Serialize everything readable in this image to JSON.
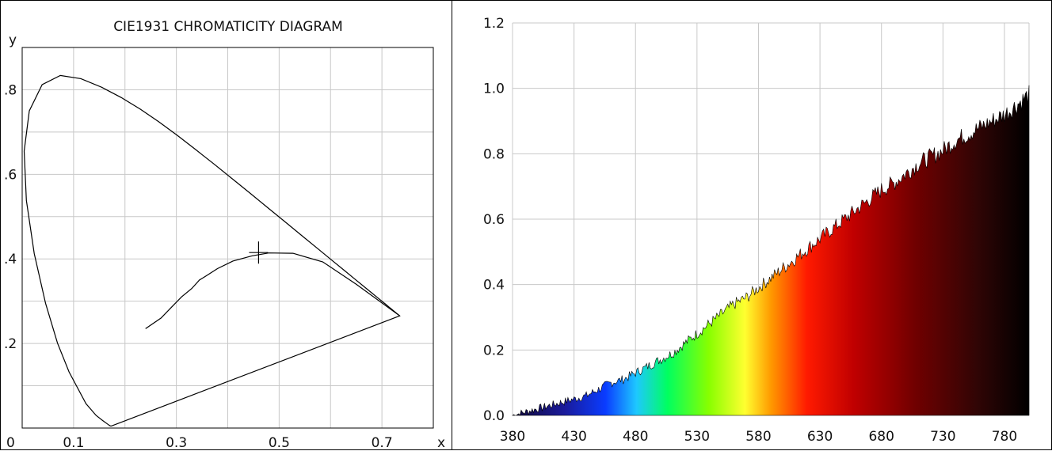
{
  "chart_data": [
    {
      "type": "scatter",
      "title": "CIE1931 CHROMATICITY DIAGRAM",
      "xlabel": "x",
      "ylabel": "y",
      "xlim": [
        0,
        0.8
      ],
      "ylim": [
        0,
        0.9
      ],
      "grid": true,
      "x_tick_labels": [
        "0",
        "0.1",
        "0.3",
        "0.5",
        "0.7"
      ],
      "y_tick_labels": [
        ".2",
        ".4",
        ".6",
        ".8"
      ],
      "spectral_locus": [
        [
          0.1741,
          0.005
        ],
        [
          0.173,
          0.0048
        ],
        [
          0.1714,
          0.0051
        ],
        [
          0.1689,
          0.0069
        ],
        [
          0.1644,
          0.0109
        ],
        [
          0.1566,
          0.0177
        ],
        [
          0.144,
          0.0297
        ],
        [
          0.1241,
          0.0578
        ],
        [
          0.0913,
          0.1327
        ],
        [
          0.0687,
          0.2007
        ],
        [
          0.0454,
          0.295
        ],
        [
          0.0235,
          0.4127
        ],
        [
          0.0082,
          0.5384
        ],
        [
          0.0039,
          0.6548
        ],
        [
          0.0139,
          0.7502
        ],
        [
          0.0389,
          0.812
        ],
        [
          0.0743,
          0.8338
        ],
        [
          0.1142,
          0.8262
        ],
        [
          0.1547,
          0.8059
        ],
        [
          0.1929,
          0.7816
        ],
        [
          0.2296,
          0.7543
        ],
        [
          0.2658,
          0.7243
        ],
        [
          0.3016,
          0.6923
        ],
        [
          0.3373,
          0.6589
        ],
        [
          0.3731,
          0.6245
        ],
        [
          0.4087,
          0.5896
        ],
        [
          0.4441,
          0.5547
        ],
        [
          0.4788,
          0.5202
        ],
        [
          0.5125,
          0.4866
        ],
        [
          0.5448,
          0.4544
        ],
        [
          0.5752,
          0.4242
        ],
        [
          0.6029,
          0.3965
        ],
        [
          0.627,
          0.3725
        ],
        [
          0.6482,
          0.3514
        ],
        [
          0.6658,
          0.334
        ],
        [
          0.6801,
          0.3197
        ],
        [
          0.6915,
          0.3083
        ],
        [
          0.7006,
          0.2993
        ],
        [
          0.7079,
          0.292
        ],
        [
          0.714,
          0.2859
        ],
        [
          0.719,
          0.2809
        ],
        [
          0.723,
          0.277
        ],
        [
          0.726,
          0.274
        ],
        [
          0.7283,
          0.2717
        ],
        [
          0.73,
          0.27
        ],
        [
          0.7347,
          0.2653
        ]
      ],
      "planckian_locus": [
        [
          0.7347,
          0.2653
        ],
        [
          0.65,
          0.34
        ],
        [
          0.585,
          0.393
        ],
        [
          0.5268,
          0.4133
        ],
        [
          0.48,
          0.414
        ],
        [
          0.4476,
          0.4074
        ],
        [
          0.41,
          0.395
        ],
        [
          0.38,
          0.377
        ],
        [
          0.358,
          0.36
        ],
        [
          0.345,
          0.35
        ],
        [
          0.33,
          0.33
        ],
        [
          0.31,
          0.31
        ],
        [
          0.29,
          0.285
        ],
        [
          0.27,
          0.26
        ],
        [
          0.24,
          0.235
        ]
      ],
      "marker": {
        "x": 0.46,
        "y": 0.415
      }
    },
    {
      "type": "area",
      "title": "",
      "xlabel": "",
      "ylabel": "",
      "xlim": [
        380,
        800
      ],
      "ylim": [
        0,
        1.2
      ],
      "grid": true,
      "x_tick_labels": [
        "380",
        "430",
        "480",
        "530",
        "580",
        "630",
        "680",
        "730",
        "780"
      ],
      "y_tick_labels": [
        "0.0",
        "0.2",
        "0.4",
        "0.6",
        "0.8",
        "1.0",
        "1.2"
      ],
      "x": [
        380,
        390,
        400,
        410,
        420,
        430,
        440,
        450,
        460,
        470,
        480,
        490,
        500,
        510,
        520,
        530,
        540,
        550,
        560,
        570,
        580,
        590,
        600,
        610,
        620,
        630,
        640,
        650,
        660,
        670,
        680,
        690,
        700,
        710,
        720,
        730,
        740,
        750,
        760,
        770,
        780,
        790,
        800
      ],
      "values": [
        0.0,
        0.01,
        0.02,
        0.03,
        0.04,
        0.05,
        0.06,
        0.08,
        0.1,
        0.11,
        0.13,
        0.15,
        0.17,
        0.19,
        0.22,
        0.25,
        0.28,
        0.31,
        0.34,
        0.36,
        0.39,
        0.42,
        0.45,
        0.48,
        0.51,
        0.54,
        0.57,
        0.6,
        0.63,
        0.66,
        0.69,
        0.71,
        0.74,
        0.77,
        0.79,
        0.81,
        0.84,
        0.86,
        0.88,
        0.9,
        0.92,
        0.95,
        0.98
      ],
      "fill": "spectral colors (380-780 nm)"
    }
  ]
}
